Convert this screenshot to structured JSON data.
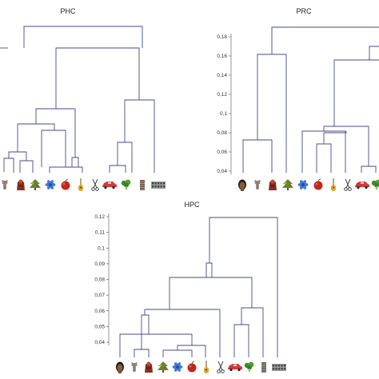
{
  "panels": [
    {
      "id": "phc",
      "title": "PHC",
      "ticks": [],
      "leaves": [
        {
          "icon": "hand"
        },
        {
          "icon": "figurine"
        },
        {
          "icon": "tree"
        },
        {
          "icon": "flower"
        },
        {
          "icon": "apple"
        },
        {
          "icon": "guitar"
        },
        {
          "icon": "scissors"
        },
        {
          "icon": "car"
        },
        {
          "icon": "broccoli"
        },
        {
          "icon": "radiator"
        },
        {
          "icon": "building"
        }
      ]
    },
    {
      "id": "prc",
      "title": "PRC",
      "ticks": [
        "0,04",
        "0,06",
        "0,08",
        "0,1",
        "0,12",
        "0,14",
        "0,16",
        "0,18"
      ],
      "leaves": [
        {
          "icon": "face"
        },
        {
          "icon": "hand"
        },
        {
          "icon": "figurine"
        },
        {
          "icon": "tree"
        },
        {
          "icon": "flower"
        },
        {
          "icon": "apple"
        },
        {
          "icon": "guitar"
        },
        {
          "icon": "scissors"
        },
        {
          "icon": "car"
        },
        {
          "icon": "broccoli"
        }
      ]
    },
    {
      "id": "hpc",
      "title": "HPC",
      "ticks": [
        "0,04",
        "0,05",
        "0,06",
        "0,07",
        "0,08",
        "0,09",
        "0,1",
        "0,11",
        "0,12"
      ],
      "leaves": [
        {
          "icon": "face"
        },
        {
          "icon": "hand"
        },
        {
          "icon": "figurine"
        },
        {
          "icon": "tree"
        },
        {
          "icon": "flower"
        },
        {
          "icon": "apple"
        },
        {
          "icon": "guitar"
        },
        {
          "icon": "scissors"
        },
        {
          "icon": "car"
        },
        {
          "icon": "broccoli"
        },
        {
          "icon": "radiator"
        },
        {
          "icon": "building"
        }
      ]
    }
  ],
  "colors": {
    "branch": "#4a4a8c",
    "axis": "#555555"
  }
}
